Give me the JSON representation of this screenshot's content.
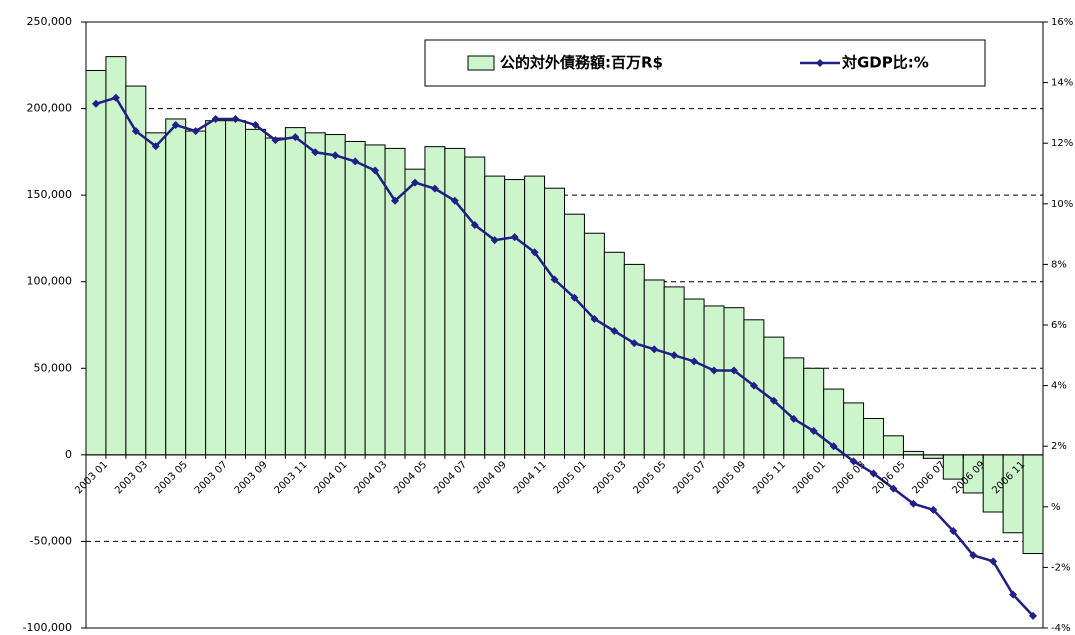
{
  "chart_data": {
    "type": "bar_line",
    "categories": [
      "2003 01",
      null,
      "2003 03",
      null,
      "2003 05",
      null,
      "2003 07",
      null,
      "2003 09",
      null,
      "2003 11",
      null,
      "2004 01",
      null,
      "2004 03",
      null,
      "2004 05",
      null,
      "2004 07",
      null,
      "2004 09",
      null,
      "2004 11",
      null,
      "2005 01",
      null,
      "2005 03",
      null,
      "2005 05",
      null,
      "2005 07",
      null,
      "2005 09",
      null,
      "2005 11",
      null,
      "2006 01",
      null,
      "2006 03",
      null,
      "2006 05",
      null,
      "2006 07",
      null,
      "2006 09",
      null,
      "2006 11",
      null
    ],
    "series": [
      {
        "name": "公的対外債務額:百万R$",
        "color": "#ccf5cc",
        "axis": "y",
        "kind": "bar",
        "values": [
          222000,
          230000,
          213000,
          186000,
          194000,
          187000,
          193000,
          193000,
          188000,
          183000,
          189000,
          186000,
          185000,
          181000,
          179000,
          177000,
          165000,
          178000,
          177000,
          172000,
          161000,
          159000,
          161000,
          154000,
          139000,
          128000,
          117000,
          110000,
          101000,
          97000,
          90000,
          86000,
          85000,
          78000,
          68000,
          56000,
          50000,
          38000,
          30000,
          21000,
          11000,
          2000,
          -2000,
          -14000,
          -22000,
          -33000,
          -45000,
          -57000
        ]
      },
      {
        "name": "対GDP比:%",
        "color": "#1f1f86",
        "axis": "y2",
        "kind": "line",
        "values": [
          13.3,
          13.5,
          12.4,
          11.9,
          12.6,
          12.4,
          12.8,
          12.8,
          12.6,
          12.1,
          12.2,
          11.7,
          11.6,
          11.4,
          11.1,
          10.1,
          10.7,
          10.5,
          10.1,
          9.3,
          8.8,
          8.9,
          8.4,
          7.5,
          6.9,
          6.2,
          5.8,
          5.4,
          5.2,
          5.0,
          4.8,
          4.5,
          4.5,
          4.0,
          3.5,
          2.9,
          2.5,
          2.0,
          1.5,
          1.1,
          0.6,
          0.1,
          -0.1,
          -0.8,
          -1.6,
          -1.8,
          -2.9,
          -3.6
        ]
      }
    ],
    "ylim": [
      -100000,
      250000
    ],
    "yticks": [
      {
        "value": -100000,
        "label": "-100,000"
      },
      {
        "value": -50000,
        "label": "-50,000"
      },
      0,
      {
        "value": 50000,
        "label": "50,000"
      },
      {
        "value": 100000,
        "label": "100,000"
      },
      {
        "value": 150000,
        "label": "150,000"
      },
      {
        "value": 200000,
        "label": "200,000"
      },
      {
        "value": 250000,
        "label": "250,000"
      }
    ],
    "y2lim": [
      -4,
      16
    ],
    "y2ticks": [
      {
        "value": -4,
        "label": "-4%"
      },
      {
        "value": -2,
        "label": "-2%"
      },
      {
        "value": 0,
        "label": "%"
      },
      {
        "value": 2,
        "label": "2%"
      },
      {
        "value": 4,
        "label": "4%"
      },
      {
        "value": 6,
        "label": "6%"
      },
      {
        "value": 8,
        "label": "8%"
      },
      {
        "value": 10,
        "label": "10%"
      },
      {
        "value": 12,
        "label": "12%"
      },
      {
        "value": 14,
        "label": "14%"
      },
      {
        "value": 16,
        "label": "16%"
      }
    ],
    "grid": true,
    "legend": "top-right"
  }
}
